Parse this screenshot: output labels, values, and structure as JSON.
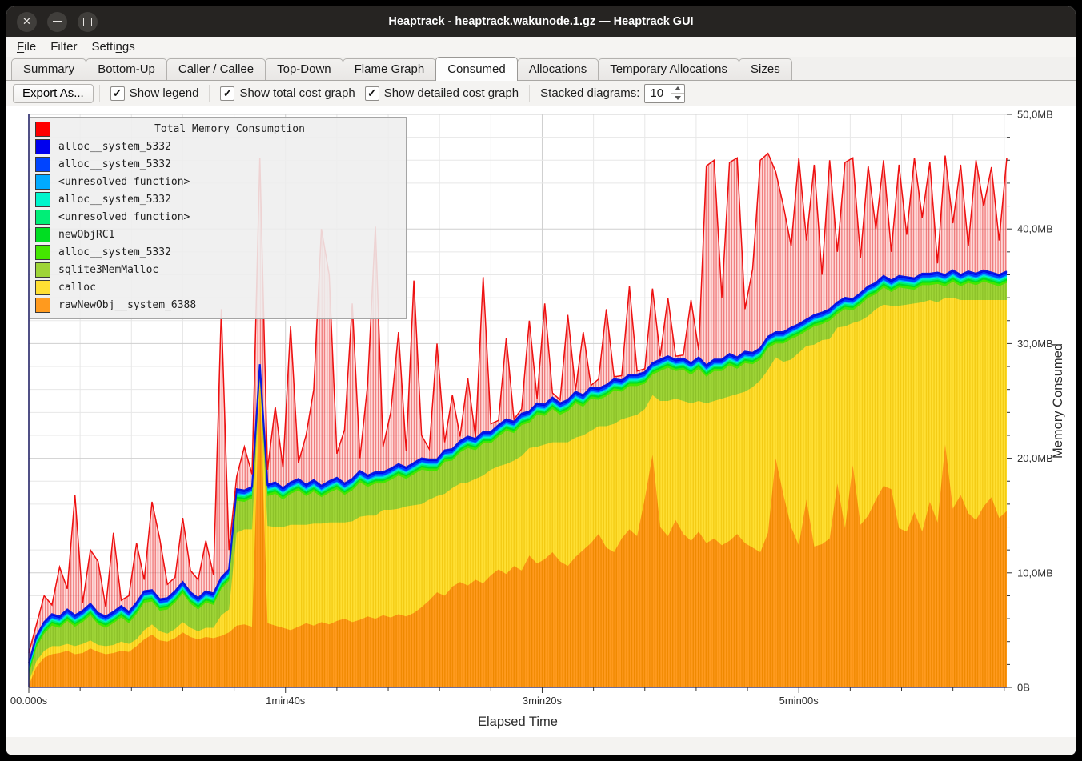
{
  "window": {
    "title": "Heaptrack - heaptrack.wakunode.1.gz — Heaptrack GUI"
  },
  "menu": {
    "items": [
      {
        "label": "File",
        "underline": 0
      },
      {
        "label": "Filter",
        "underline": -1
      },
      {
        "label": "Settings",
        "underline": 5
      }
    ]
  },
  "tabs": {
    "active": "Consumed",
    "items": [
      "Summary",
      "Bottom-Up",
      "Caller / Callee",
      "Top-Down",
      "Flame Graph",
      "Consumed",
      "Allocations",
      "Temporary Allocations",
      "Sizes"
    ]
  },
  "toolbar": {
    "export_label": "Export As...",
    "checkboxes": [
      {
        "label": "Show legend",
        "checked": true
      },
      {
        "label": "Show total cost graph",
        "checked": true
      },
      {
        "label": "Show detailed cost graph",
        "checked": true
      }
    ],
    "stacked_label": "Stacked diagrams:",
    "stacked_value": "10"
  },
  "chart_data": {
    "type": "area",
    "title": "Total Memory Consumption",
    "xlabel": "Elapsed Time",
    "ylabel": "Memory Consumed",
    "x_range_s": [
      0,
      381
    ],
    "ylim_mb": [
      0,
      50
    ],
    "x_start_s": 0,
    "x_step_s": 3,
    "grid": true,
    "minor_x_step_s": 20,
    "minor_y_step_mb": 2,
    "x_ticks": [
      {
        "s": 0,
        "label": "00.000s"
      },
      {
        "s": 100,
        "label": "1min40s"
      },
      {
        "s": 200,
        "label": "3min20s"
      },
      {
        "s": 300,
        "label": "5min00s"
      }
    ],
    "y_ticks": [
      {
        "mb": 0,
        "label": "0B"
      },
      {
        "mb": 10,
        "label": "10,0MB"
      },
      {
        "mb": 20,
        "label": "20,0MB"
      },
      {
        "mb": 30,
        "label": "30,0MB"
      },
      {
        "mb": 40,
        "label": "40,0MB"
      },
      {
        "mb": 50,
        "label": "50,0MB"
      }
    ],
    "legend_title": "Total Memory Consumption",
    "total": {
      "name": "Total Memory Consumption",
      "color": "#ff0000",
      "values_mb": [
        3.0,
        5.5,
        8.0,
        7.2,
        10.5,
        8.6,
        16.8,
        7.4,
        12.0,
        11.0,
        7.0,
        13.5,
        7.6,
        8.0,
        12.6,
        9.4,
        16.2,
        13.0,
        9.0,
        9.6,
        14.8,
        10.2,
        9.4,
        12.8,
        9.8,
        33.0,
        12.0,
        18.4,
        21.0,
        18.6,
        46.2,
        19.0,
        24.5,
        19.2,
        31.5,
        19.6,
        22.0,
        26.0,
        40.0,
        36.0,
        20.4,
        22.5,
        33.5,
        20.0,
        26.5,
        40.2,
        21.0,
        24.0,
        31.0,
        20.6,
        35.5,
        22.0,
        20.8,
        30.0,
        21.4,
        25.5,
        21.9,
        27.0,
        21.8,
        35.8,
        23.0,
        23.3,
        30.5,
        23.4,
        24.3,
        32.0,
        25.2,
        33.5,
        25.7,
        25.1,
        32.5,
        25.8,
        31.0,
        26.2,
        26.9,
        33.0,
        27.1,
        27.2,
        35.0,
        27.6,
        27.8,
        34.8,
        28.9,
        34.0,
        28.9,
        29.0,
        33.8,
        29.4,
        45.5,
        46.0,
        34.0,
        45.8,
        46.2,
        33.0,
        36.5,
        46.0,
        46.6,
        45.0,
        42.0,
        38.5,
        46.2,
        39.0,
        45.6,
        36.0,
        46.0,
        38.0,
        45.8,
        46.2,
        37.5,
        45.5,
        40.0,
        46.0,
        38.0,
        45.6,
        39.5,
        46.2,
        41.0,
        45.8,
        37.0,
        46.4,
        40.5,
        45.6,
        38.5,
        46.0,
        42.0,
        45.4,
        39.0,
        46.2
      ]
    },
    "stack_bottom_to_top": [
      {
        "name": "rawNewObj__system_6388",
        "color": "#ff9a1e",
        "stripe": "#ef8900",
        "values_mb": [
          0.2,
          1.8,
          2.6,
          2.9,
          3.0,
          3.2,
          2.9,
          3.0,
          3.4,
          3.1,
          2.9,
          3.0,
          3.2,
          3.1,
          3.6,
          4.2,
          4.6,
          4.1,
          4.0,
          4.3,
          4.8,
          4.4,
          4.2,
          4.4,
          4.3,
          4.5,
          4.8,
          5.4,
          5.5,
          5.3,
          26.5,
          5.6,
          5.4,
          5.2,
          5.0,
          5.3,
          5.6,
          5.4,
          5.7,
          5.5,
          5.8,
          6.0,
          5.7,
          5.9,
          6.2,
          6.0,
          6.3,
          6.1,
          6.4,
          6.2,
          6.5,
          7.0,
          7.6,
          8.3,
          8.0,
          8.8,
          9.2,
          8.9,
          9.4,
          9.1,
          9.8,
          10.3,
          9.9,
          10.6,
          10.2,
          11.5,
          10.8,
          11.2,
          11.8,
          11.0,
          10.6,
          11.4,
          12.0,
          12.6,
          13.4,
          12.2,
          11.8,
          13.0,
          13.8,
          13.2,
          16.5,
          20.3,
          14.0,
          13.2,
          14.6,
          13.4,
          12.8,
          13.6,
          12.6,
          13.0,
          12.4,
          12.8,
          13.4,
          12.6,
          12.2,
          11.8,
          13.5,
          20.0,
          16.8,
          14.0,
          12.4,
          16.4,
          12.3,
          12.5,
          13.0,
          17.8,
          13.9,
          19.4,
          14.2,
          15.0,
          16.4,
          17.6,
          17.3,
          13.9,
          13.6,
          15.3,
          13.6,
          16.2,
          14.4,
          21.2,
          15.6,
          16.8,
          15.2,
          14.6,
          15.8,
          16.6,
          14.8,
          15.4
        ]
      },
      {
        "name": "calloc",
        "color": "#ffdf33",
        "stripe": "#f3cb13",
        "values_mb": [
          0.3,
          0.5,
          0.6,
          0.7,
          0.6,
          0.6,
          0.7,
          0.8,
          0.7,
          0.6,
          0.7,
          0.7,
          0.8,
          0.7,
          0.6,
          0.8,
          0.9,
          0.8,
          0.7,
          0.8,
          0.9,
          0.8,
          0.7,
          0.8,
          0.9,
          1.8,
          2.0,
          8.1,
          8.3,
          8.5,
          0.4,
          8.5,
          8.6,
          8.8,
          9.2,
          8.9,
          8.6,
          8.9,
          8.6,
          8.9,
          8.6,
          8.4,
          8.8,
          9.0,
          8.8,
          9.0,
          9.2,
          9.4,
          9.2,
          9.6,
          9.4,
          9.0,
          8.8,
          8.4,
          8.9,
          8.6,
          8.6,
          9.0,
          8.8,
          9.4,
          9.2,
          9.0,
          9.6,
          9.2,
          10.0,
          9.4,
          10.2,
          10.0,
          9.6,
          10.4,
          10.8,
          10.4,
          10.0,
          9.8,
          9.4,
          10.6,
          11.2,
          10.4,
          9.8,
          10.6,
          7.8,
          5.2,
          11.0,
          11.8,
          10.6,
          11.6,
          12.0,
          11.4,
          12.2,
          12.0,
          12.8,
          12.6,
          12.2,
          13.2,
          14.0,
          15.0,
          14.2,
          8.8,
          11.6,
          14.6,
          16.8,
          13.4,
          17.6,
          17.8,
          17.4,
          13.6,
          17.6,
          12.4,
          17.8,
          17.4,
          16.6,
          15.8,
          16.0,
          19.4,
          19.8,
          18.2,
          20.0,
          17.6,
          19.2,
          12.8,
          18.4,
          17.0,
          18.6,
          19.2,
          18.0,
          17.2,
          19.0,
          18.4
        ]
      },
      {
        "name": "sqlite3MemMalloc",
        "color": "#9ed437",
        "stripe": "#8cc228",
        "values_mb": [
          0.6,
          1.2,
          1.5,
          1.8,
          1.6,
          2.0,
          1.7,
          1.9,
          2.2,
          1.8,
          1.6,
          1.9,
          2.1,
          1.8,
          2.2,
          2.4,
          2.0,
          1.8,
          2.1,
          2.3,
          2.5,
          2.1,
          1.9,
          2.2,
          2.0,
          2.3,
          2.5,
          2.8,
          2.4,
          2.7,
          0.3,
          2.6,
          2.9,
          2.4,
          2.7,
          3.0,
          2.5,
          2.8,
          2.3,
          2.6,
          2.9,
          2.4,
          2.7,
          3.0,
          2.5,
          2.8,
          2.3,
          2.6,
          2.9,
          2.4,
          2.7,
          3.0,
          2.5,
          2.2,
          2.8,
          2.4,
          2.7,
          3.0,
          2.5,
          2.8,
          2.3,
          2.6,
          2.9,
          2.4,
          2.7,
          2.2,
          2.8,
          2.5,
          2.9,
          2.4,
          2.7,
          3.0,
          2.5,
          2.8,
          2.3,
          2.6,
          2.9,
          2.4,
          2.7,
          2.5,
          2.2,
          1.8,
          2.6,
          2.9,
          2.4,
          2.7,
          2.5,
          2.8,
          2.3,
          2.6,
          2.4,
          2.7,
          2.2,
          2.5,
          2.0,
          1.8,
          1.9,
          1.2,
          1.6,
          1.8,
          1.5,
          1.3,
          1.6,
          1.4,
          1.6,
          1.2,
          1.5,
          1.1,
          1.4,
          1.6,
          1.3,
          1.5,
          1.2,
          1.6,
          1.4,
          1.2,
          1.5,
          1.3,
          1.6,
          1.0,
          1.4,
          1.2,
          1.5,
          1.3,
          1.6,
          1.4,
          1.2,
          1.5
        ]
      },
      {
        "name": "alloc__system_5332",
        "color": "#44e600",
        "constant_mb": 0.2
      },
      {
        "name": "newObjRC1",
        "color": "#00dd22",
        "constant_mb": 0.15
      },
      {
        "name": "<unresolved function>",
        "color": "#00ee77",
        "constant_mb": 0.12
      },
      {
        "name": "alloc__system_5332",
        "color": "#00f5cc",
        "constant_mb": 0.1
      },
      {
        "name": "<unresolved function>",
        "color": "#00aaff",
        "constant_mb": 0.1
      },
      {
        "name": "alloc__system_5332",
        "color": "#0044ff",
        "constant_mb": 0.18
      },
      {
        "name": "alloc__system_5332",
        "color": "#0000ee",
        "constant_mb": 0.15
      }
    ]
  }
}
